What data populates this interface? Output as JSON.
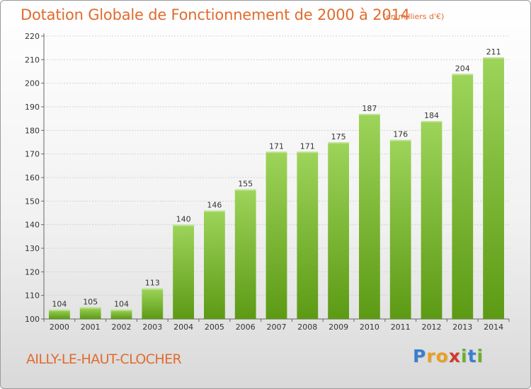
{
  "header": {
    "title": "Dotation Globale de Fonctionnement de 2000 à 2014",
    "units": "(en milliers d'€)"
  },
  "footer": {
    "commune": "AILLY-LE-HAUT-CLOCHER",
    "logo": [
      "P",
      "r",
      "o",
      "x",
      "i",
      "t",
      "i"
    ],
    "logo_colors": [
      "#3a7fd0",
      "#e8a020",
      "#e8a020",
      "#d03a2a",
      "#6ab02a",
      "#3a7fd0",
      "#6ab02a"
    ]
  },
  "chart_data": {
    "type": "bar",
    "title": "Dotation Globale de Fonctionnement de 2000 à 2014",
    "subtitle": "(en milliers d'€)",
    "categories": [
      "2000",
      "2001",
      "2002",
      "2003",
      "2004",
      "2005",
      "2006",
      "2007",
      "2008",
      "2009",
      "2010",
      "2011",
      "2012",
      "2013",
      "2014"
    ],
    "values": [
      104,
      105,
      104,
      113,
      140,
      146,
      155,
      171,
      171,
      175,
      187,
      176,
      184,
      204,
      211
    ],
    "ylim": [
      100,
      220
    ],
    "yticks": [
      100,
      110,
      120,
      130,
      140,
      150,
      160,
      170,
      180,
      190,
      200,
      210,
      220
    ],
    "grid": true,
    "bar_color_top": "#9dd45a",
    "bar_color_bottom": "#5c9a14"
  }
}
